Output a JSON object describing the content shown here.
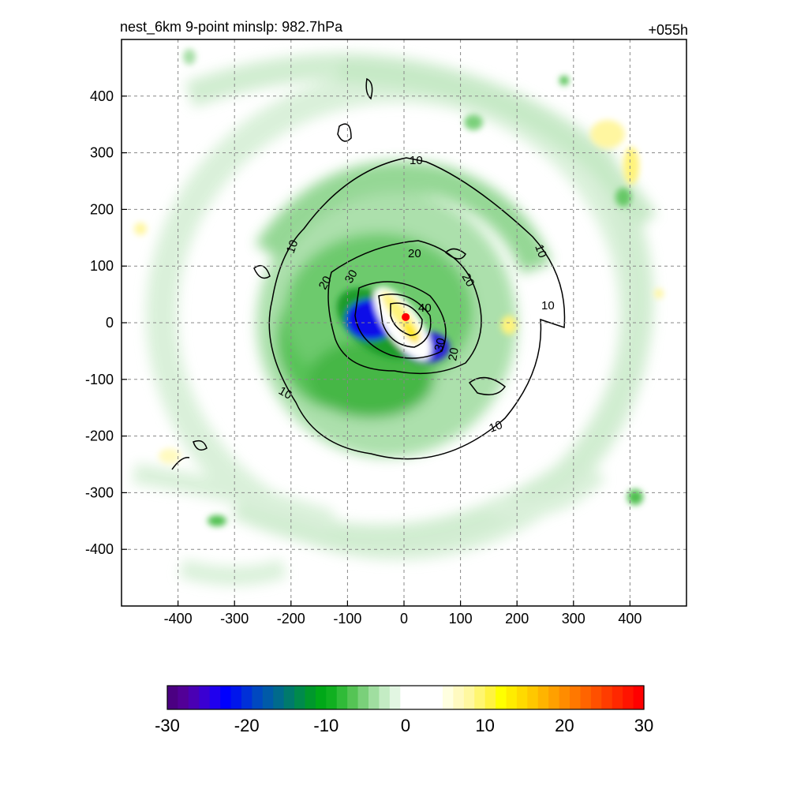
{
  "title_left": "nest_6km  9-point minslp: 982.7hPa",
  "title_right": "+055h",
  "chart_data": {
    "type": "filled-contour",
    "xlim": [
      -500,
      500
    ],
    "ylim": [
      -500,
      500
    ],
    "x_ticks": [
      -400,
      -300,
      -200,
      -100,
      0,
      100,
      200,
      300,
      400
    ],
    "y_ticks": [
      -400,
      -300,
      -200,
      -100,
      0,
      100,
      200,
      300,
      400
    ],
    "grid": true,
    "center_marker": {
      "x": 3,
      "y": 10,
      "color": "#ff0000"
    },
    "contour_labels": [
      "10",
      "20",
      "30",
      "40"
    ],
    "colorbar": {
      "range": [
        -30,
        30
      ],
      "tick_values": [
        -30,
        -20,
        -10,
        0,
        10,
        20,
        30
      ],
      "tick_labels": [
        "-30",
        "-20",
        "-10",
        "0",
        "10",
        "20",
        "30"
      ],
      "colors": [
        "#4b0082",
        "#520097",
        "#4a00b4",
        "#3a00d2",
        "#2000ee",
        "#0000ff",
        "#0016ec",
        "#0030d8",
        "#0048c0",
        "#005aa8",
        "#006a8c",
        "#007a6c",
        "#008a4c",
        "#00982c",
        "#00a818",
        "#10b020",
        "#30bb38",
        "#55c455",
        "#7ad07a",
        "#a0dea0",
        "#c4ecc4",
        "#e2f6e2",
        "#ffffff",
        "#ffffff",
        "#ffffff",
        "#ffffff",
        "#ffffe0",
        "#fffac0",
        "#fff8a0",
        "#fff670",
        "#fff340",
        "#ffff00",
        "#ffec00",
        "#ffda00",
        "#ffc800",
        "#ffb400",
        "#ffa000",
        "#ff8c00",
        "#ff7800",
        "#ff6400",
        "#ff5000",
        "#ff3c00",
        "#ff2800",
        "#ff1400",
        "#ff0000"
      ]
    }
  }
}
